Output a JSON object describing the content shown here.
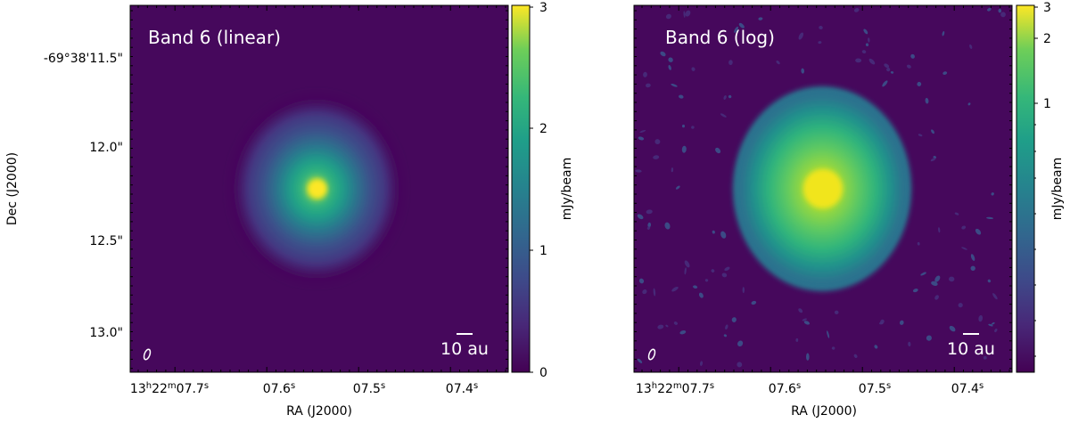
{
  "chart_data": [
    {
      "type": "heatmap",
      "panel_label": "Band 6 (linear)",
      "xlabel": "RA (J2000)",
      "ylabel": "Dec (J2000)",
      "x_ticks": [
        {
          "h": "13",
          "m": "22",
          "s": "07.7",
          "text": "13h22m07.7s"
        },
        {
          "s": "07.6",
          "text": "07.6s"
        },
        {
          "s": "07.5",
          "text": "07.5s"
        },
        {
          "s": "07.4",
          "text": "07.4s"
        }
      ],
      "y_ticks": [
        "-69°38'11.5\"",
        "12.0\"",
        "12.5\"",
        "13.0\""
      ],
      "colorbar": {
        "label": "mJy/beam",
        "scale": "linear",
        "range": [
          0,
          3
        ],
        "ticks": [
          "0",
          "1",
          "2",
          "3"
        ],
        "colormap": "viridis"
      },
      "scalebar_label": "10 au",
      "beam_marker": "ellipse"
    },
    {
      "type": "heatmap",
      "panel_label": "Band 6 (log)",
      "xlabel": "RA (J2000)",
      "x_ticks": [
        {
          "h": "13",
          "m": "22",
          "s": "07.7",
          "text": "13h22m07.7s"
        },
        {
          "s": "07.6",
          "text": "07.6s"
        },
        {
          "s": "07.5",
          "text": "07.5s"
        },
        {
          "s": "07.4",
          "text": "07.4s"
        }
      ],
      "colorbar": {
        "label": "mJy/beam",
        "scale": "log",
        "range": [
          0,
          3
        ],
        "ticks": [
          "1",
          "2",
          "3"
        ],
        "colormap": "viridis"
      },
      "scalebar_label": "10 au",
      "beam_marker": "ellipse"
    }
  ],
  "colors": {
    "viridis_low": "#440154",
    "viridis_mid": "#21918c",
    "viridis_high": "#fde725",
    "background": "#46085c"
  }
}
